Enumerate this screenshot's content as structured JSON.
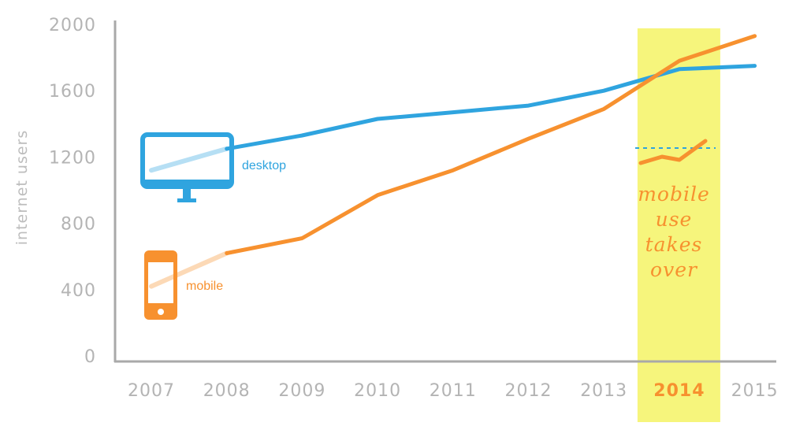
{
  "chart_data": {
    "type": "line",
    "ylabel": "internet users",
    "ylim": [
      0,
      2000
    ],
    "yticks": [
      "2000",
      "1600",
      "1200",
      "800",
      "400",
      "0"
    ],
    "categories": [
      "2007",
      "2008",
      "2009",
      "2010",
      "2011",
      "2012",
      "2013",
      "2014",
      "2015"
    ],
    "highlight_category": "2014",
    "series": [
      {
        "name": "desktop",
        "color": "#2fa4df",
        "icon": "monitor-icon",
        "values": [
          1120,
          1250,
          1330,
          1430,
          1470,
          1510,
          1600,
          1730,
          1750
        ]
      },
      {
        "name": "mobile",
        "color": "#f7912f",
        "icon": "smartphone-icon",
        "values": [
          420,
          620,
          710,
          970,
          1120,
          1310,
          1490,
          1780,
          1930
        ]
      }
    ],
    "annotation": [
      "mobile",
      "use",
      "takes",
      "over"
    ],
    "colors": {
      "highlight": "#f6f57c",
      "axis": "#a9a9a9",
      "tick_text": "#b4b4b4"
    }
  }
}
